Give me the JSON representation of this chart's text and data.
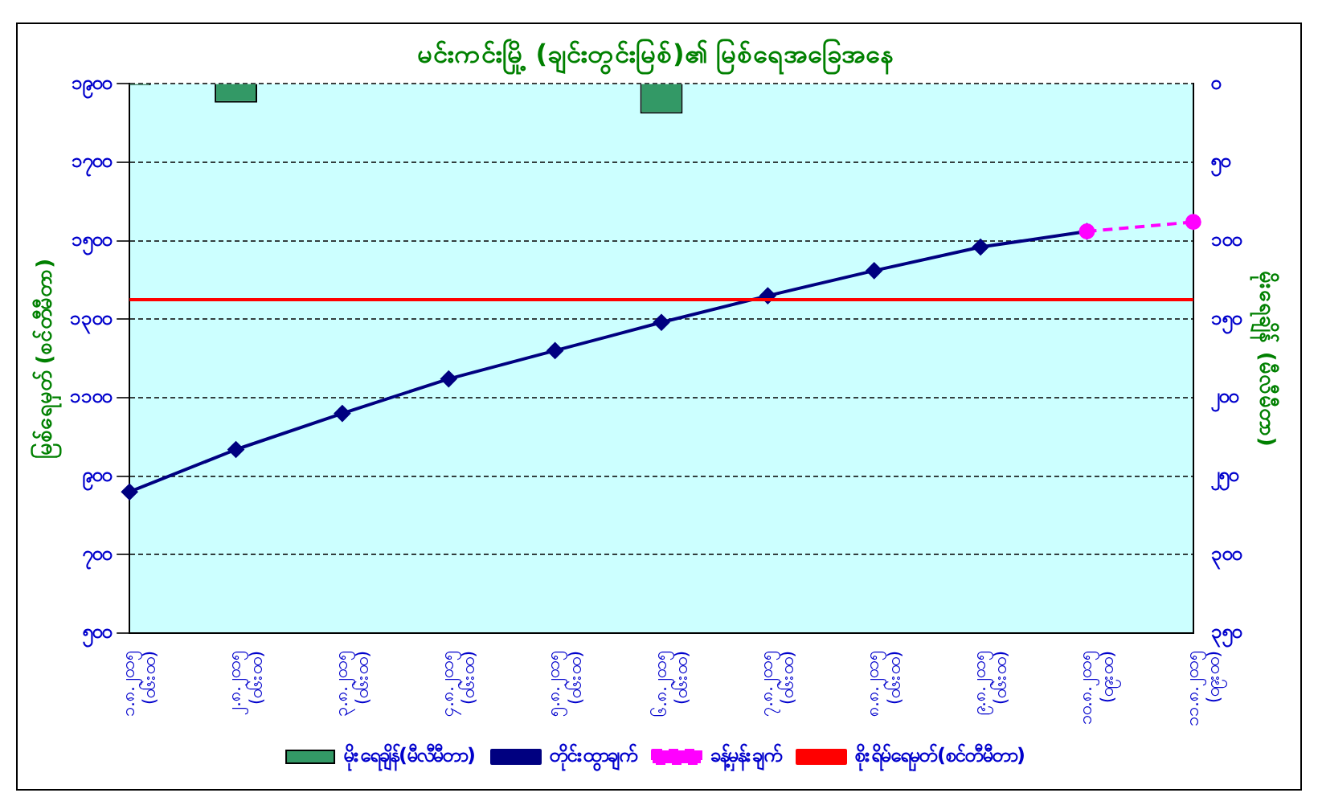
{
  "chart_data": {
    "type": "line",
    "title": "မင်းကင်းမြို့ (ချင်းတွင်းမြစ်)၏ မြစ်ရေအခြေအနေ",
    "ylabel": "မြစ်ရေမှတ် (စင်တီမီတာ)",
    "y2label": "မိုးရေချိန် (မီလီမီတာ)",
    "categories": [
      "၁.၈.၂၀၁၅ (၀၆း၀၀)",
      "၂.၈.၂၀၁၅ (၀၆း၀၀)",
      "၃.၈.၂၀၁၅ (၀၆း၀၀)",
      "၄.၈.၂၀၁၅ (၀၆း၀၀)",
      "၅.၈.၂၀၁၅ (၀၆း၀၀)",
      "၆.၈.၂၀၁၅ (၀၆း၀၀)",
      "၇.၈.၂၀၁၅ (၀၆း၀၀)",
      "၈.၈.၂၀၁၅ (၀၆း၀၀)",
      "၉.၈.၂၀၁၅ (၀၆း၀၀)",
      "၁၀.၈.၂၀၁၅ (၀၉း၀၀)",
      "၁၁.၈.၂၀၁၅ (၀၉း၀၀)"
    ],
    "series": [
      {
        "name": "မိုးရေချိန်(မီလီမီတာ)",
        "type": "bar",
        "axis": "y2",
        "color": "#339966",
        "values": [
          1,
          12,
          0,
          0,
          0,
          19,
          0,
          0,
          0,
          0,
          0
        ]
      },
      {
        "name": "တိုင်းထွာချက်",
        "color": "#000080",
        "marker": "diamond",
        "line_style": "solid",
        "values": [
          860,
          968,
          1060,
          1148,
          1220,
          1292,
          1360,
          1424,
          1484,
          1524,
          null
        ]
      },
      {
        "name": "ခန့်မှန်းချက်",
        "color": "#ff00ff",
        "marker": "circle",
        "line_style": "dashed",
        "values": [
          null,
          null,
          null,
          null,
          null,
          null,
          null,
          null,
          null,
          1524,
          1548
        ]
      },
      {
        "name": "စိုးရိမ်ရေမှတ်(စင်တီမီတာ)",
        "color": "#ff0000",
        "marker": "none",
        "line_style": "solid",
        "values": [
          1350,
          1350,
          1350,
          1350,
          1350,
          1350,
          1350,
          1350,
          1350,
          1350,
          1350
        ]
      }
    ],
    "ylim": [
      500,
      1900
    ],
    "yticks": [
      {
        "value": 500,
        "label": "၅၀၀"
      },
      {
        "value": 700,
        "label": "၇၀၀"
      },
      {
        "value": 900,
        "label": "၉၀၀"
      },
      {
        "value": 1100,
        "label": "၁၁၀၀"
      },
      {
        "value": 1300,
        "label": "၁၃၀၀"
      },
      {
        "value": 1500,
        "label": "၁၅၀၀"
      },
      {
        "value": 1700,
        "label": "၁၇၀၀"
      },
      {
        "value": 1900,
        "label": "၁၉၀၀"
      }
    ],
    "y2lim": [
      350,
      0
    ],
    "y2ticks": [
      {
        "value": 0,
        "label": "၀"
      },
      {
        "value": 50,
        "label": "၅၀"
      },
      {
        "value": 100,
        "label": "၁၀၀"
      },
      {
        "value": 150,
        "label": "၁၅၀"
      },
      {
        "value": 200,
        "label": "၂၀၀"
      },
      {
        "value": 250,
        "label": "၂၅၀"
      },
      {
        "value": 300,
        "label": "၃၀၀"
      },
      {
        "value": 350,
        "label": "၃၅၀"
      }
    ],
    "grid": "y",
    "legend": "bottom"
  }
}
